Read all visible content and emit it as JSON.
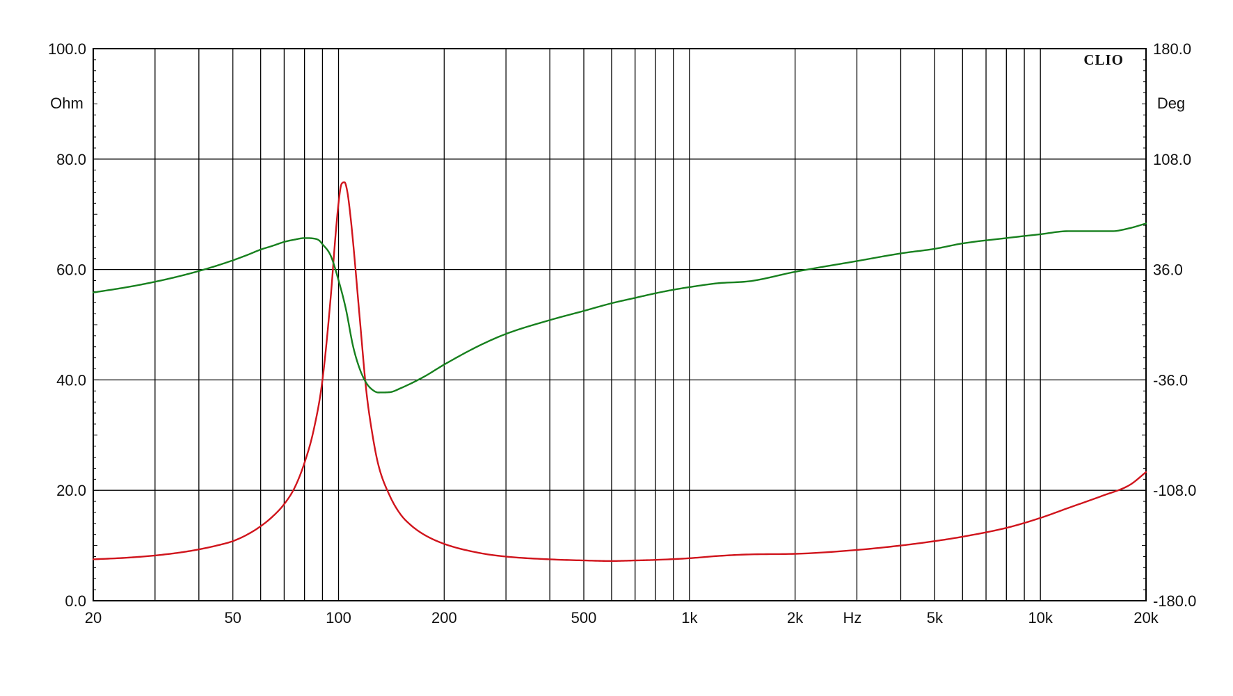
{
  "chart_data": {
    "type": "line",
    "brand": "CLIO",
    "x_unit": "Hz",
    "y_left_unit": "Ohm",
    "y_right_unit": "Deg",
    "x_scale": "log",
    "xlim": [
      20,
      20000
    ],
    "ylim_left": [
      0,
      100
    ],
    "ylim_right": [
      -180,
      180
    ],
    "grid": true,
    "x_ticks": [
      {
        "value": 20,
        "label": "20"
      },
      {
        "value": 50,
        "label": "50"
      },
      {
        "value": 100,
        "label": "100"
      },
      {
        "value": 200,
        "label": "200"
      },
      {
        "value": 500,
        "label": "500"
      },
      {
        "value": 1000,
        "label": "1k"
      },
      {
        "value": 2000,
        "label": "2k"
      },
      {
        "value": 5000,
        "label": "5k"
      },
      {
        "value": 10000,
        "label": "10k"
      },
      {
        "value": 20000,
        "label": "20k"
      }
    ],
    "y_left_ticks": [
      "0.0",
      "20.0",
      "40.0",
      "60.0",
      "80.0",
      "100.0"
    ],
    "y_right_ticks": [
      "-180.0",
      "-108.0",
      "-36.0",
      "36.0",
      "108.0",
      "180.0"
    ],
    "series": [
      {
        "axis": "left",
        "color": "#d0141c",
        "points": [
          [
            20,
            7.5
          ],
          [
            25,
            7.8
          ],
          [
            30,
            8.2
          ],
          [
            35,
            8.7
          ],
          [
            40,
            9.3
          ],
          [
            45,
            10.0
          ],
          [
            50,
            10.8
          ],
          [
            55,
            12.0
          ],
          [
            60,
            13.5
          ],
          [
            65,
            15.3
          ],
          [
            70,
            17.5
          ],
          [
            75,
            20.5
          ],
          [
            80,
            25.0
          ],
          [
            85,
            31.0
          ],
          [
            90,
            40.0
          ],
          [
            95,
            55.0
          ],
          [
            98,
            66.0
          ],
          [
            100,
            72.0
          ],
          [
            102,
            75.5
          ],
          [
            104,
            75.8
          ],
          [
            106,
            74.0
          ],
          [
            108,
            70.0
          ],
          [
            110,
            65.0
          ],
          [
            115,
            51.0
          ],
          [
            120,
            38.0
          ],
          [
            125,
            30.0
          ],
          [
            130,
            24.5
          ],
          [
            140,
            19.0
          ],
          [
            150,
            15.7
          ],
          [
            160,
            13.8
          ],
          [
            175,
            12.0
          ],
          [
            200,
            10.3
          ],
          [
            250,
            8.7
          ],
          [
            300,
            8.0
          ],
          [
            400,
            7.5
          ],
          [
            500,
            7.3
          ],
          [
            600,
            7.2
          ],
          [
            700,
            7.3
          ],
          [
            800,
            7.4
          ],
          [
            1000,
            7.7
          ],
          [
            1200,
            8.1
          ],
          [
            1500,
            8.4
          ],
          [
            2000,
            8.5
          ],
          [
            3000,
            9.2
          ],
          [
            4000,
            10.0
          ],
          [
            5000,
            10.8
          ],
          [
            6000,
            11.6
          ],
          [
            8000,
            13.2
          ],
          [
            10000,
            15.0
          ],
          [
            12000,
            16.8
          ],
          [
            15000,
            19.0
          ],
          [
            18000,
            21.0
          ],
          [
            20000,
            23.3
          ]
        ]
      },
      {
        "axis": "right",
        "color": "#17801e",
        "points": [
          [
            20,
            21.0
          ],
          [
            25,
            24.5
          ],
          [
            30,
            28.0
          ],
          [
            35,
            31.5
          ],
          [
            40,
            35.0
          ],
          [
            45,
            38.5
          ],
          [
            50,
            42.0
          ],
          [
            55,
            45.5
          ],
          [
            60,
            49.0
          ],
          [
            65,
            51.5
          ],
          [
            70,
            54.0
          ],
          [
            75,
            55.5
          ],
          [
            80,
            56.5
          ],
          [
            85,
            56.2
          ],
          [
            88,
            55.0
          ],
          [
            90,
            52.5
          ],
          [
            95,
            45.0
          ],
          [
            100,
            29.0
          ],
          [
            105,
            10.0
          ],
          [
            110,
            -14.0
          ],
          [
            115,
            -29.0
          ],
          [
            120,
            -38.0
          ],
          [
            125,
            -42.5
          ],
          [
            130,
            -44.2
          ],
          [
            140,
            -44.0
          ],
          [
            150,
            -41.5
          ],
          [
            175,
            -34.0
          ],
          [
            200,
            -26.0
          ],
          [
            250,
            -14.0
          ],
          [
            300,
            -6.0
          ],
          [
            400,
            3.0
          ],
          [
            500,
            9.0
          ],
          [
            600,
            14.0
          ],
          [
            700,
            17.5
          ],
          [
            800,
            20.5
          ],
          [
            900,
            22.8
          ],
          [
            1000,
            24.5
          ],
          [
            1200,
            27.0
          ],
          [
            1500,
            28.5
          ],
          [
            2000,
            34.5
          ],
          [
            3000,
            41.5
          ],
          [
            4000,
            46.5
          ],
          [
            5000,
            49.5
          ],
          [
            6000,
            53.0
          ],
          [
            8000,
            56.5
          ],
          [
            10000,
            59.0
          ],
          [
            12000,
            61.0
          ],
          [
            14000,
            61.0
          ],
          [
            16000,
            61.0
          ],
          [
            18000,
            63.0
          ],
          [
            20000,
            66.0
          ]
        ]
      }
    ]
  }
}
